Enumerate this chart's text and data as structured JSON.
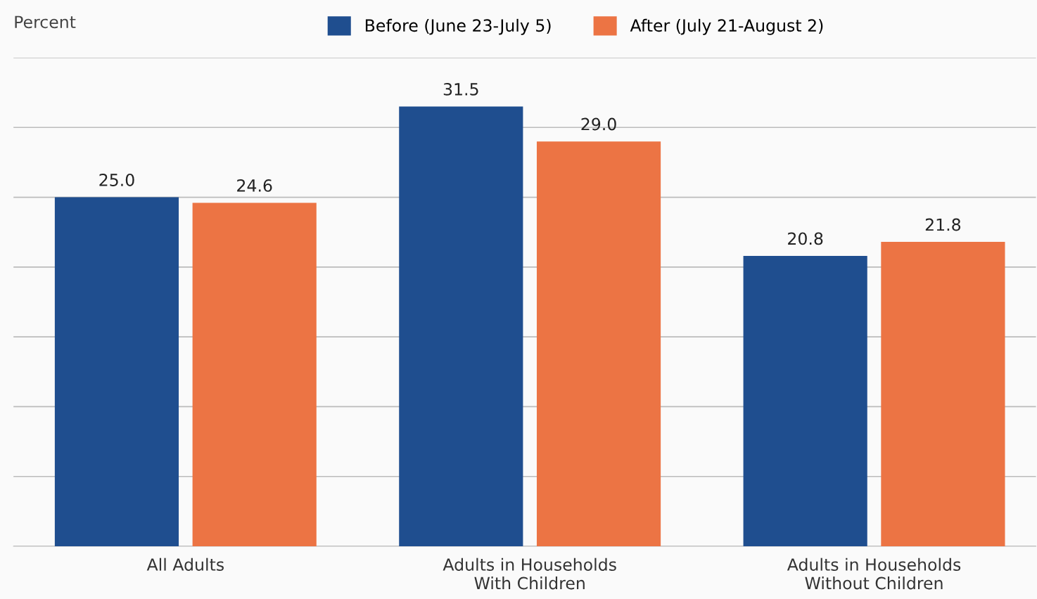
{
  "chart_data": {
    "type": "bar",
    "ylabel": "Percent",
    "categories": [
      "All Adults",
      "Adults in Households\nWith Children",
      "Adults in Households\nWithout Children"
    ],
    "series": [
      {
        "name": "Before (June 23-July 5)",
        "color": "#1f4e8f",
        "values": [
          25.0,
          31.5,
          20.8
        ],
        "value_labels": [
          "25.0",
          "31.5",
          "20.8"
        ]
      },
      {
        "name": "After (July 21-August 2)",
        "color": "#ec7444",
        "values": [
          24.6,
          29.0,
          21.8
        ],
        "value_labels": [
          "24.6",
          "29.0",
          "21.8"
        ]
      }
    ],
    "ylim": [
      0,
      35
    ],
    "yticks": [
      {
        "value": 0,
        "label": null
      },
      {
        "value": 5,
        "label": null
      },
      {
        "value": 10,
        "label": null
      },
      {
        "value": 15,
        "label": null
      },
      {
        "value": 20,
        "label": null
      },
      {
        "value": 25,
        "label": null
      },
      {
        "value": 30,
        "label": null
      },
      {
        "value": 35,
        "label": null
      }
    ],
    "tick_labels": "x",
    "grid": "y",
    "legend": "top"
  }
}
